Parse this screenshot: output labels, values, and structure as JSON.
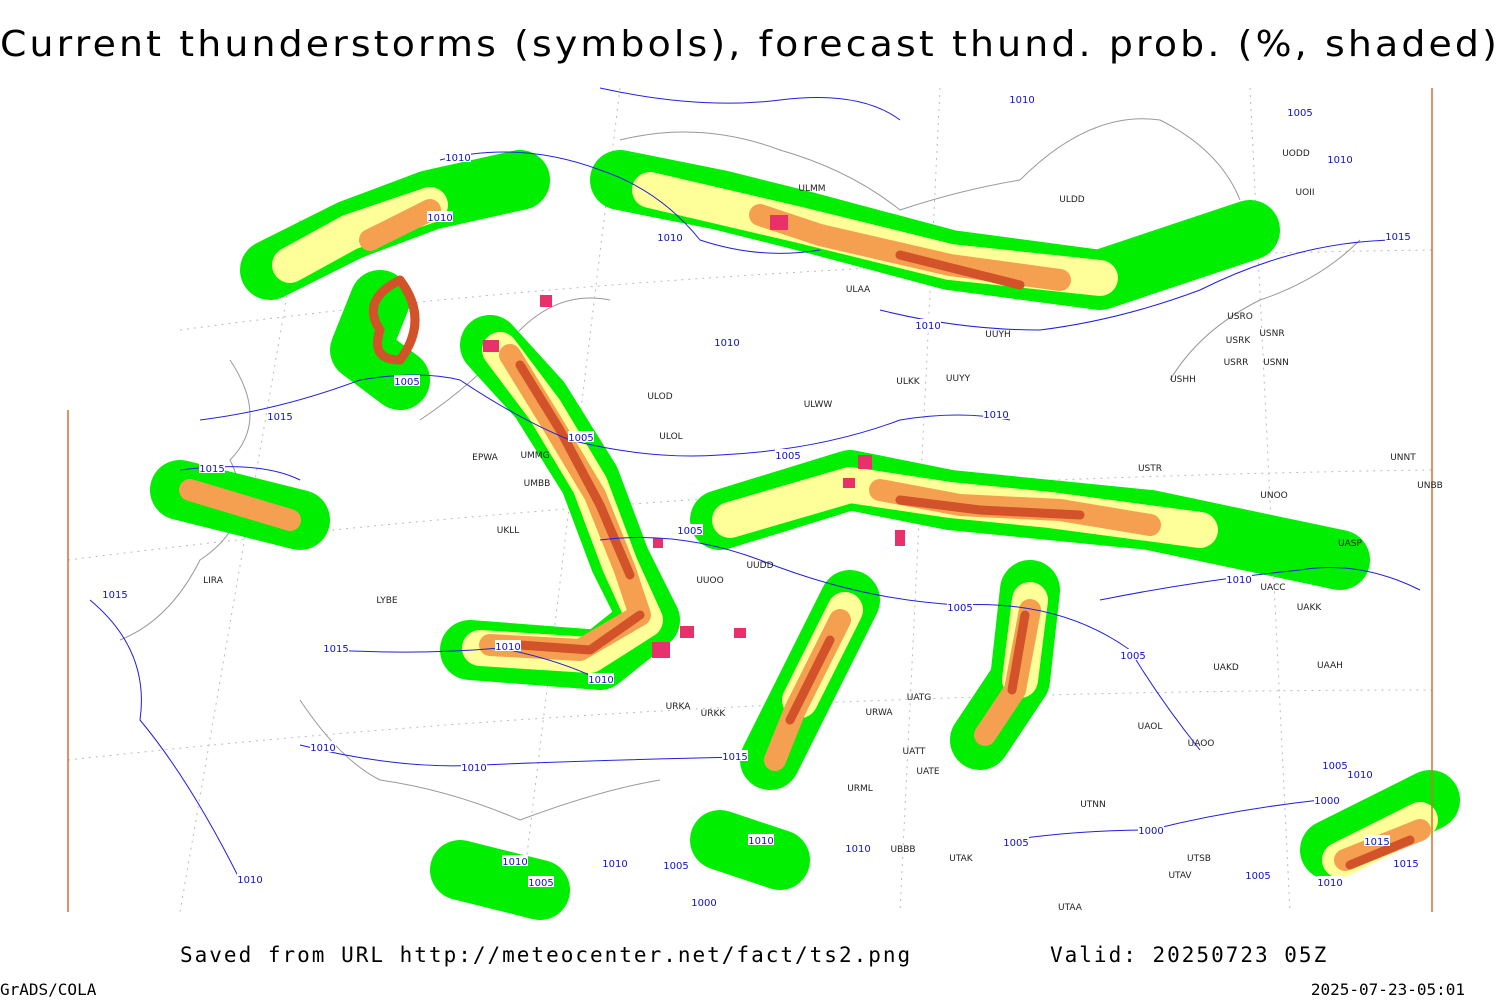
{
  "title": "Current thunderstorms (symbols), forecast thund. prob. (%, shaded)",
  "footer": {
    "saved": "Saved from URL http://meteocenter.net/fact/ts2.png",
    "valid": "Valid: 20250723 05Z",
    "software": "GrADS/COLA",
    "timestamp": "2025-07-23-05:01"
  },
  "isobar_labels": [
    "1010",
    "1005",
    "1010",
    "1015",
    "1010",
    "1010",
    "1010",
    "1010",
    "1010",
    "1005",
    "1015",
    "1005",
    "1010",
    "1005",
    "1015",
    "1005",
    "1015",
    "1010",
    "1005",
    "1015",
    "1010",
    "1010",
    "1005",
    "1010",
    "1015",
    "1010",
    "1005",
    "1000",
    "1010",
    "1010",
    "1005",
    "1010",
    "1010",
    "1005",
    "1010",
    "1000",
    "1015",
    "1015",
    "1010",
    "1005",
    "1000",
    "1010",
    "1005"
  ],
  "stations": [
    "ULDD",
    "ULMM",
    "ULAA",
    "UUYH",
    "ULKK",
    "UUYY",
    "ULWW",
    "ULOD",
    "ULOL",
    "UMMG",
    "EPWA",
    "UMBB",
    "UUOO",
    "UUDD",
    "USRR",
    "USNN",
    "USRK",
    "USNR",
    "USRO",
    "USHH",
    "USTR",
    "UNOO",
    "UASP",
    "UNNT",
    "UNBB",
    "UACC",
    "UAKK",
    "UAKD",
    "UAAH",
    "UATG",
    "URWA",
    "URKK",
    "URKA",
    "UATE",
    "UATT",
    "UAOL",
    "UAOO",
    "UTNN",
    "UTSB",
    "UTAV",
    "UTAA",
    "UBBB",
    "UTAK",
    "URML",
    "UODD",
    "UOII",
    "LIRA",
    "LYBE",
    "UKLL"
  ]
}
